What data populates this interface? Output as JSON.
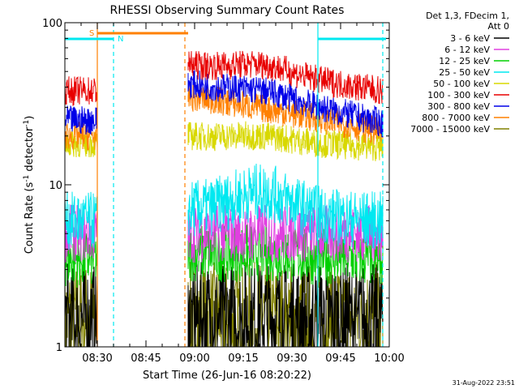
{
  "chart_data": {
    "type": "line",
    "title": "RHESSI Observing Summary Count Rates",
    "xlabel": "Start Time (26-Jun-16 08:20:22)",
    "ylabel_main": "Count Rate (s",
    "ylabel_sup1": "-1",
    "ylabel_mid": " detector",
    "ylabel_sup2": "-1",
    "ylabel_end": ")",
    "yscale": "log",
    "ylim": [
      1,
      100
    ],
    "xlim": [
      "08:20",
      "10:00"
    ],
    "x_ticks": [
      "08:30",
      "08:45",
      "09:00",
      "09:15",
      "09:30",
      "09:45",
      "10:00"
    ],
    "y_ticks": [
      "1",
      "10",
      "100"
    ],
    "legend_header": [
      "Det 1,3, FDecim 1,",
      "Att 0"
    ],
    "legend_position": "right",
    "series": [
      {
        "name": "3 - 6 keV",
        "color": "#000000"
      },
      {
        "name": "6 - 12 keV",
        "color": "#e040e0"
      },
      {
        "name": "12 - 25 keV",
        "color": "#00d000"
      },
      {
        "name": "25 - 50 keV",
        "color": "#00e8f0"
      },
      {
        "name": "50 - 100 keV",
        "color": "#d8d800"
      },
      {
        "name": "100 - 300 keV",
        "color": "#e80000"
      },
      {
        "name": "300 - 800 keV",
        "color": "#0000e8"
      },
      {
        "name": "800 - 7000 keV",
        "color": "#ff8000"
      },
      {
        "name": "7000 - 15000 keV",
        "color": "#808000"
      }
    ],
    "data_segments": [
      {
        "start": "08:20",
        "end": "08:30"
      },
      {
        "start": "08:58",
        "end": "09:58"
      }
    ],
    "series_levels": {
      "100 - 300 keV": {
        "seg1": 38,
        "seg2_start": 55,
        "seg2_peak": 55,
        "seg2_end": 38
      },
      "300 - 800 keV": {
        "seg1": 25,
        "seg2_start": 42,
        "seg2_peak": 38,
        "seg2_end": 24
      },
      "800 - 7000 keV": {
        "seg1": 20,
        "seg2_start": 35,
        "seg2_peak": 27,
        "seg2_end": 21
      },
      "50 - 100 keV": {
        "seg1": 18,
        "seg2_start": 20,
        "seg2_peak": 20,
        "seg2_end": 17
      },
      "25 - 50 keV": {
        "seg1": 6,
        "seg2_start": 7,
        "seg2_peak": 9,
        "seg2_end": 6
      },
      "6 - 12 keV": {
        "seg1": 5,
        "seg2_start": 5,
        "seg2_peak": 5,
        "seg2_end": 5
      },
      "12 - 25 keV": {
        "seg1": 3.5,
        "seg2_start": 3.8,
        "seg2_peak": 3.8,
        "seg2_end": 3.5
      },
      "3 - 6 keV": {
        "seg1": 1.5,
        "seg2_start": 1.5,
        "seg2_peak": 1.5,
        "seg2_end": 1.5
      },
      "7000 - 15000 keV": {
        "seg1": 1.5,
        "seg2_start": 1.5,
        "seg2_peak": 1.5,
        "seg2_end": 1.5
      }
    },
    "annotations": {
      "saa_label": "S",
      "saa_color": "#ff8000",
      "saa_bar": {
        "start": "08:30",
        "end": "08:58"
      },
      "night_label": "N",
      "night_color": "#00e8f0",
      "night_bars": [
        {
          "start": "08:20",
          "end": "08:35"
        },
        {
          "start": "09:38",
          "end": "09:59"
        }
      ],
      "vlines": [
        {
          "time": "08:30",
          "color": "#ff8000",
          "style": "solid"
        },
        {
          "time": "08:35",
          "color": "#00e8f0",
          "style": "dashed"
        },
        {
          "time": "08:57",
          "color": "#ff8000",
          "style": "dashed"
        },
        {
          "time": "09:38",
          "color": "#00e8f0",
          "style": "solid"
        },
        {
          "time": "09:58",
          "color": "#00e8f0",
          "style": "dashed"
        }
      ]
    }
  },
  "footer_text": "31-Aug-2022 23:51"
}
